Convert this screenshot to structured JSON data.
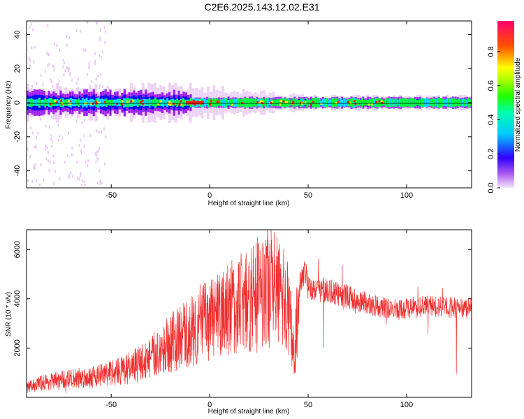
{
  "page": {
    "title": "C2E6.2025.143.12.02.E31"
  },
  "colorbar": {
    "label": "Normalized spectral amplitude",
    "ticks": [
      "0.0",
      "0.2",
      "0.4",
      "0.6",
      "0.8"
    ]
  },
  "chart_data": [
    {
      "type": "heatmap",
      "title": "",
      "xlabel": "Height of straight line (km)",
      "ylabel": "Frequency (Hz)",
      "xlim": [
        -93,
        133
      ],
      "ylim": [
        -50,
        48
      ],
      "x_ticks": [
        -50,
        0,
        50,
        100
      ],
      "y_ticks": [
        -40,
        -20,
        0,
        20,
        40
      ],
      "x_tick_labels": [
        "-50",
        "0",
        "50",
        "100"
      ],
      "y_tick_labels": [
        "-40",
        "-20",
        "0",
        "20",
        "40"
      ],
      "colormap": [
        "#e8c8f4",
        "#a020f0",
        "#0000ff",
        "#00e0ff",
        "#00ff40",
        "#ffff00",
        "#ff2000",
        "#ff0080"
      ],
      "band": {
        "center_hz": 0,
        "inner_halfwidth_hz_near": 2.5,
        "outer_halfwidth_hz_near": 10,
        "outer_halfwidth_hz_far": 4
      },
      "grid": false,
      "legend": "colorbar-right"
    },
    {
      "type": "line",
      "title": "",
      "xlabel": "Height of straight line (km)",
      "ylabel": "SNR (10 * v/v)",
      "xlim": [
        -93,
        133
      ],
      "ylim": [
        0,
        6800
      ],
      "x_ticks": [
        -50,
        0,
        50,
        100
      ],
      "y_ticks": [
        2000,
        4000,
        6000
      ],
      "x_tick_labels": [
        "-50",
        "0",
        "50",
        "100"
      ],
      "y_tick_labels": [
        "2000",
        "4000",
        "6000"
      ],
      "line_color": "#f03030",
      "grid": false,
      "series": [
        {
          "x": [
            -93,
            -85,
            -75,
            -65,
            -55,
            -45,
            -40,
            -35,
            -30,
            -25,
            -20,
            -15,
            -10,
            -5,
            0,
            5,
            10,
            15,
            20,
            25,
            30,
            35,
            40,
            43,
            45,
            48,
            50,
            55,
            60,
            65,
            70,
            75,
            80,
            85,
            90,
            95,
            100,
            105,
            110,
            115,
            120,
            125,
            130,
            133
          ],
          "y": [
            400,
            600,
            700,
            800,
            900,
            1100,
            1200,
            1400,
            1600,
            1900,
            2200,
            2400,
            2700,
            3000,
            3100,
            3300,
            3600,
            3800,
            4000,
            4300,
            4500,
            4200,
            3700,
            1500,
            4300,
            5200,
            4500,
            4400,
            4300,
            4200,
            4100,
            3900,
            3800,
            3700,
            3600,
            3550,
            3600,
            3650,
            3700,
            3700,
            3650,
            3650,
            3600,
            3600
          ]
        }
      ]
    }
  ]
}
